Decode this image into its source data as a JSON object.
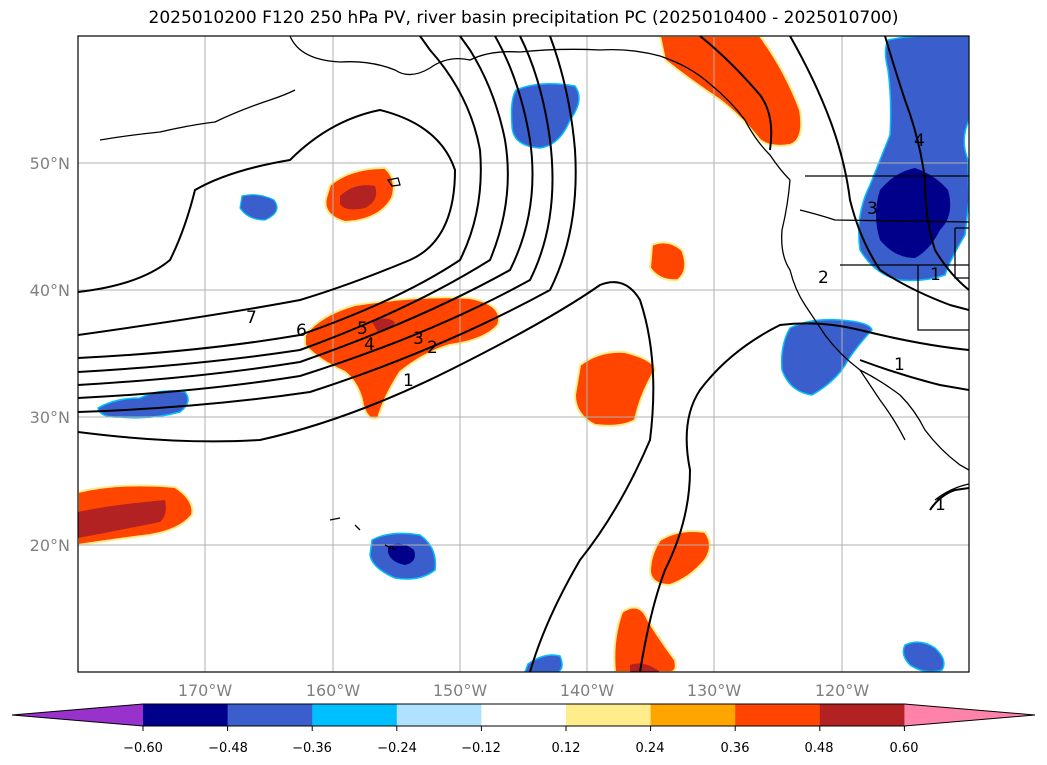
{
  "title": "2025010200 F120 250 hPa PV, river basin precipitation PC (2025010400 - 2025010700)",
  "longitude_labels": [
    "170°W",
    "160°W",
    "150°W",
    "140°W",
    "130°W",
    "120°W"
  ],
  "latitude_labels": [
    "50°N",
    "40°N",
    "30°N",
    "20°N"
  ],
  "colorbar": {
    "colors": [
      "#9932cc",
      "#00008b",
      "#3a5fcd",
      "#00bfff",
      "#b0e2ff",
      "#ffffff",
      "#ffec8b",
      "#ffa500",
      "#ff4500",
      "#b22222",
      "#ff82ab"
    ],
    "tick_labels": [
      "−0.60",
      "−0.48",
      "−0.36",
      "−0.24",
      "−0.12",
      "0.12",
      "0.24",
      "0.36",
      "0.48",
      "0.60"
    ]
  },
  "contour_labels": [
    "7",
    "6",
    "5",
    "4",
    "3",
    "2",
    "1",
    "1",
    "2",
    "3",
    "4",
    "1",
    "1"
  ],
  "colors": {
    "frame": "#000000",
    "grid": "#b0b0b0",
    "tick_text": "#808080"
  }
}
